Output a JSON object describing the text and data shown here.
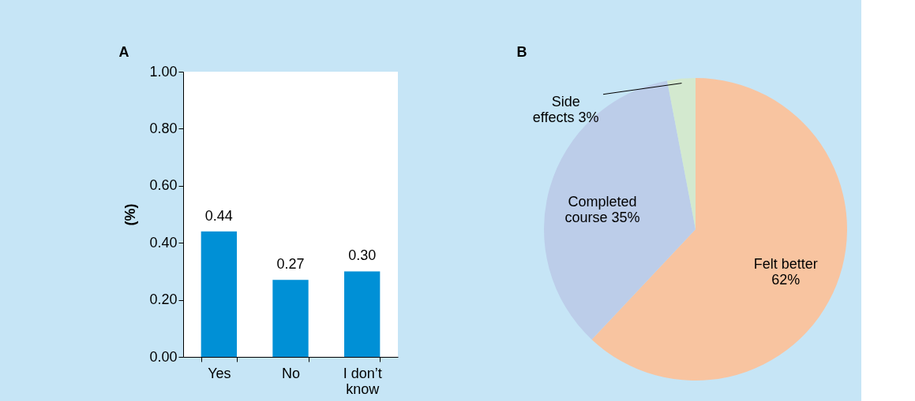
{
  "chart_data": [
    {
      "type": "bar",
      "categories": [
        "Yes",
        "No",
        "I don’t know"
      ],
      "values": [
        0.44,
        0.27,
        0.3
      ],
      "color": "#0090d6",
      "value_labels": [
        "0.44",
        "0.27",
        "0.30"
      ],
      "ylabel": "(%)",
      "ylim": [
        0,
        1
      ],
      "yticks": [
        {
          "value": 0,
          "label": "0.00"
        },
        {
          "value": 0.2,
          "label": "0.20"
        },
        {
          "value": 0.4,
          "label": "0.40"
        },
        {
          "value": 0.6,
          "label": "0.60"
        },
        {
          "value": 0.8,
          "label": "0.80"
        },
        {
          "value": 1,
          "label": "1.00"
        }
      ],
      "annotations": [
        "A"
      ]
    },
    {
      "type": "pie",
      "categories": [
        "Felt better",
        "Completed course",
        "Side effects"
      ],
      "values": [
        62,
        35,
        3
      ],
      "colors": [
        "#f8c4a0",
        "#bccde9",
        "#d3e9cf"
      ],
      "value_labels": [
        "62%",
        "35%",
        "3%"
      ],
      "annotations": [
        "B"
      ]
    }
  ]
}
